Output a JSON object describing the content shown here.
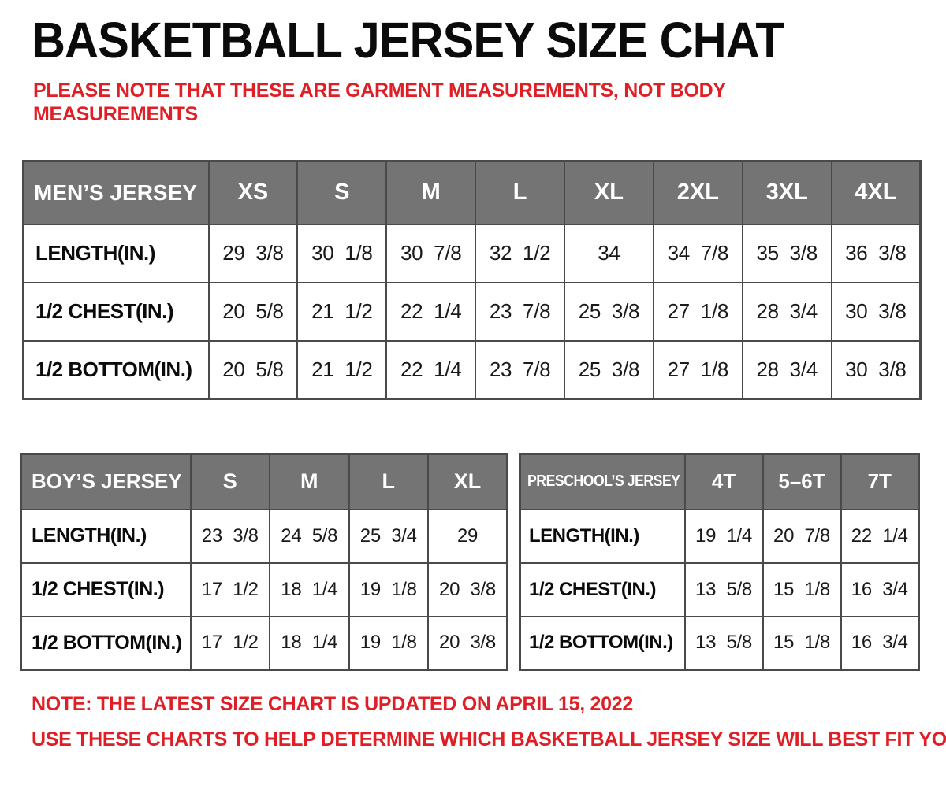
{
  "title": "BASKETBALL JERSEY SIZE CHAT",
  "warning": "PLEASE NOTE THAT THESE ARE GARMENT MEASUREMENTS, NOT BODY MEASUREMENTS",
  "colors": {
    "accent_red": "#e01e25",
    "table_header_bg": "#747474",
    "table_header_text": "#ffffff",
    "table_border": "#4a4a4a",
    "body_text": "#0b0b0b"
  },
  "tables": {
    "mens": {
      "name_header": "MEN’S JERSEY",
      "sizes": [
        "XS",
        "S",
        "M",
        "L",
        "XL",
        "2XL",
        "3XL",
        "4XL"
      ],
      "rows": [
        {
          "label": "LENGTH(IN.)",
          "values": [
            "29 3/8",
            "30 1/8",
            "30 7/8",
            "32 1/2",
            "34",
            "34 7/8",
            "35 3/8",
            "36 3/8"
          ]
        },
        {
          "label": "1/2 CHEST(IN.)",
          "values": [
            "20 5/8",
            "21 1/2",
            "22 1/4",
            "23 7/8",
            "25 3/8",
            "27 1/8",
            "28 3/4",
            "30 3/8"
          ]
        },
        {
          "label": "1/2 BOTTOM(IN.)",
          "values": [
            "20 5/8",
            "21 1/2",
            "22 1/4",
            "23 7/8",
            "25 3/8",
            "27 1/8",
            "28 3/4",
            "30 3/8"
          ]
        }
      ]
    },
    "boys": {
      "name_header": "BOY’S JERSEY",
      "sizes": [
        "S",
        "M",
        "L",
        "XL"
      ],
      "rows": [
        {
          "label": "LENGTH(IN.)",
          "values": [
            "23 3/8",
            "24 5/8",
            "25 3/4",
            "29"
          ]
        },
        {
          "label": "1/2 CHEST(IN.)",
          "values": [
            "17 1/2",
            "18 1/4",
            "19 1/8",
            "20 3/8"
          ]
        },
        {
          "label": "1/2 BOTTOM(IN.)",
          "values": [
            "17 1/2",
            "18 1/4",
            "19 1/8",
            "20 3/8"
          ]
        }
      ]
    },
    "preschools": {
      "name_header": "PRESCHOOL’S JERSEY",
      "sizes": [
        "4T",
        "5–6T",
        "7T"
      ],
      "rows": [
        {
          "label": "LENGTH(IN.)",
          "values": [
            "19 1/4",
            "20 7/8",
            "22 1/4"
          ]
        },
        {
          "label": "1/2 CHEST(IN.)",
          "values": [
            "13 5/8",
            "15 1/8",
            "16 3/4"
          ]
        },
        {
          "label": "1/2 BOTTOM(IN.)",
          "values": [
            "13 5/8",
            "15 1/8",
            "16 3/4"
          ]
        }
      ]
    }
  },
  "footnotes": [
    "NOTE: THE LATEST SIZE CHART IS UPDATED ON APRIL 15, 2022",
    "USE THESE CHARTS TO HELP DETERMINE WHICH  BASKETBALL JERSEY  SIZE WILL BEST FIT YOU."
  ]
}
